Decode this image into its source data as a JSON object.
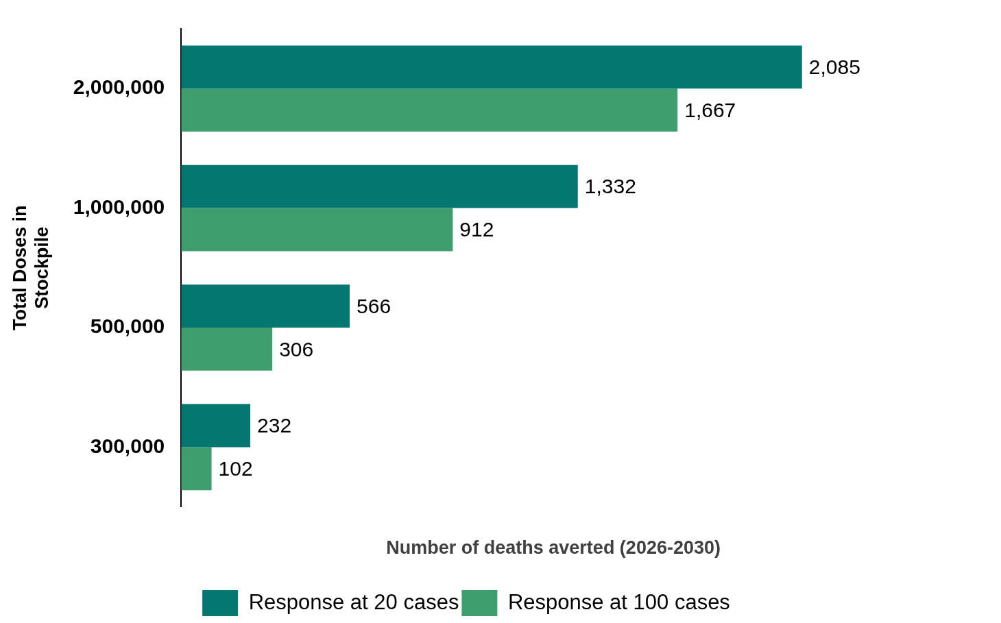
{
  "chart_data": {
    "type": "bar",
    "orientation": "horizontal",
    "xlabel": "Number of deaths averted (2026-2030)",
    "ylabel": "Total Doses in Stockpile",
    "categories": [
      "2,000,000",
      "1,000,000",
      "500,000",
      "300,000"
    ],
    "series": [
      {
        "name": "Response at 20 cases",
        "color": "#037770",
        "values": [
          2085,
          1332,
          566,
          232
        ],
        "value_labels": [
          "2,085",
          "1,332",
          "566",
          "232"
        ]
      },
      {
        "name": "Response at 100 cases",
        "color": "#3f9e6e",
        "values": [
          1667,
          912,
          306,
          102
        ],
        "value_labels": [
          "1,667",
          "912",
          "306",
          "102"
        ]
      }
    ],
    "tick_labels": "y",
    "grid": false,
    "legend": "bottom"
  }
}
